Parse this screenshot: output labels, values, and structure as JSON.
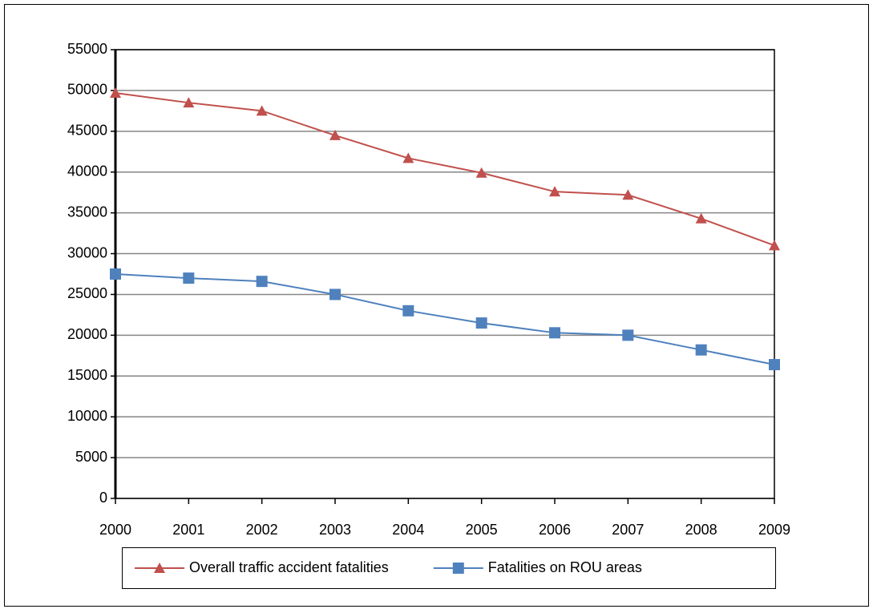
{
  "chart_data": {
    "type": "line",
    "x": [
      2000,
      2001,
      2002,
      2003,
      2004,
      2005,
      2006,
      2007,
      2008,
      2009
    ],
    "xlim": [
      2000,
      2009
    ],
    "xticks": [
      2000,
      2001,
      2002,
      2003,
      2004,
      2005,
      2006,
      2007,
      2008,
      2009
    ],
    "ylim": [
      0,
      55000
    ],
    "yticks": [
      0,
      5000,
      10000,
      15000,
      20000,
      25000,
      30000,
      35000,
      40000,
      45000,
      50000,
      55000
    ],
    "grid": true,
    "legend": "bottom",
    "series": [
      {
        "name": "Overall traffic accident fatalities",
        "color": "#c0504d",
        "marker": "triangle",
        "values": [
          49700,
          48500,
          47500,
          44500,
          41700,
          39900,
          37600,
          37200,
          34300,
          31000
        ]
      },
      {
        "name": "Fatalities on ROU areas",
        "color": "#4f81bd",
        "marker": "square",
        "values": [
          27500,
          27000,
          26600,
          25000,
          23000,
          21500,
          20300,
          20000,
          18200,
          16400
        ]
      }
    ]
  }
}
